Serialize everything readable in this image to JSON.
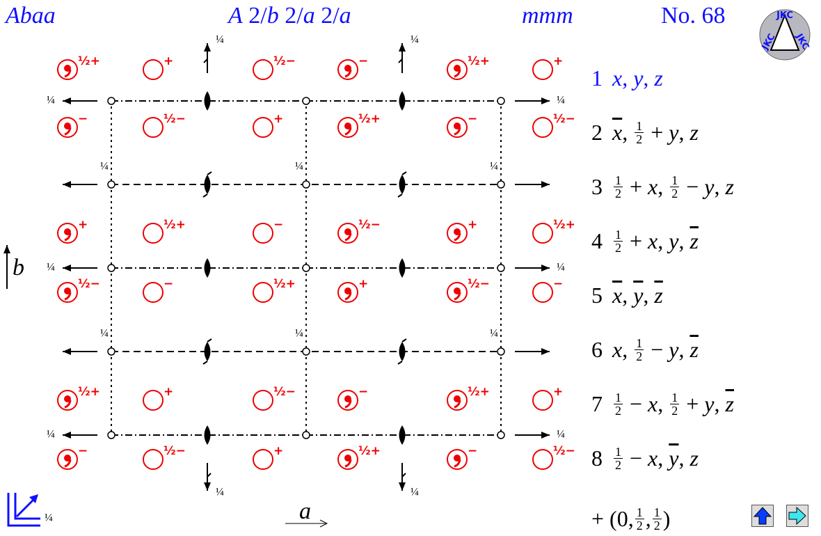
{
  "header": {
    "symbol": "Abaa",
    "full_symbol": [
      {
        "v": "A"
      },
      " 2/",
      {
        "v": "b"
      },
      " 2/",
      {
        "v": "a"
      },
      " 2/",
      {
        "v": "a"
      }
    ],
    "point_group": "mmm",
    "number": "No. 68",
    "logo": "JKC"
  },
  "axes": {
    "b": "b",
    "a": "a",
    "quarter": "¼"
  },
  "symbols": {
    "rows": [
      [
        {
          "comma": true,
          "label": "½+"
        },
        {
          "comma": false,
          "label": "+"
        },
        {
          "comma": false,
          "label": "½−"
        },
        {
          "comma": true,
          "label": "−"
        },
        {
          "comma": true,
          "label": "½+"
        },
        {
          "comma": false,
          "label": "+"
        }
      ],
      [
        {
          "comma": true,
          "label": "−"
        },
        {
          "comma": false,
          "label": "½−"
        },
        {
          "comma": false,
          "label": "+"
        },
        {
          "comma": true,
          "label": "½+"
        },
        {
          "comma": true,
          "label": "−"
        },
        {
          "comma": false,
          "label": "½−"
        }
      ],
      [
        {
          "comma": true,
          "label": "+"
        },
        {
          "comma": false,
          "label": "½+"
        },
        {
          "comma": false,
          "label": "−"
        },
        {
          "comma": true,
          "label": "½−"
        },
        {
          "comma": true,
          "label": "+"
        },
        {
          "comma": false,
          "label": "½+"
        }
      ],
      [
        {
          "comma": true,
          "label": "½−"
        },
        {
          "comma": false,
          "label": "−"
        },
        {
          "comma": false,
          "label": "½+"
        },
        {
          "comma": true,
          "label": "+"
        },
        {
          "comma": true,
          "label": "½−"
        },
        {
          "comma": false,
          "label": "−"
        }
      ],
      [
        {
          "comma": true,
          "label": "½+"
        },
        {
          "comma": false,
          "label": "+"
        },
        {
          "comma": false,
          "label": "½−"
        },
        {
          "comma": true,
          "label": "−"
        },
        {
          "comma": true,
          "label": "½+"
        },
        {
          "comma": false,
          "label": "+"
        }
      ],
      [
        {
          "comma": true,
          "label": "−"
        },
        {
          "comma": false,
          "label": "½−"
        },
        {
          "comma": false,
          "label": "+"
        },
        {
          "comma": true,
          "label": "½+"
        },
        {
          "comma": true,
          "label": "−"
        },
        {
          "comma": false,
          "label": "½−"
        }
      ]
    ]
  },
  "operations": [
    {
      "n": "1",
      "link": true,
      "terms": [
        {
          "v": "x"
        },
        ", ",
        {
          "v": "y"
        },
        ", ",
        {
          "v": "z"
        }
      ]
    },
    {
      "n": "2",
      "link": false,
      "terms": [
        {
          "v": "x",
          "bar": true
        },
        ", ",
        {
          "num": "1",
          "den": "2"
        },
        " + ",
        {
          "v": "y"
        },
        ", ",
        {
          "v": "z"
        }
      ]
    },
    {
      "n": "3",
      "link": false,
      "terms": [
        {
          "num": "1",
          "den": "2"
        },
        " + ",
        {
          "v": "x"
        },
        ", ",
        {
          "num": "1",
          "den": "2"
        },
        " − ",
        {
          "v": "y"
        },
        ", ",
        {
          "v": "z"
        }
      ]
    },
    {
      "n": "4",
      "link": false,
      "terms": [
        {
          "num": "1",
          "den": "2"
        },
        " + ",
        {
          "v": "x"
        },
        ", ",
        {
          "v": "y"
        },
        ", ",
        {
          "v": "z",
          "bar": true
        }
      ]
    },
    {
      "n": "5",
      "link": false,
      "terms": [
        {
          "v": "x",
          "bar": true
        },
        ", ",
        {
          "v": "y",
          "bar": true
        },
        ", ",
        {
          "v": "z",
          "bar": true
        }
      ]
    },
    {
      "n": "6",
      "link": false,
      "terms": [
        {
          "v": "x"
        },
        ", ",
        {
          "num": "1",
          "den": "2"
        },
        " − ",
        {
          "v": "y"
        },
        ", ",
        {
          "v": "z",
          "bar": true
        }
      ]
    },
    {
      "n": "7",
      "link": false,
      "terms": [
        {
          "num": "1",
          "den": "2"
        },
        " − ",
        {
          "v": "x"
        },
        ", ",
        {
          "num": "1",
          "den": "2"
        },
        " + ",
        {
          "v": "y"
        },
        ", ",
        {
          "v": "z",
          "bar": true
        }
      ]
    },
    {
      "n": "8",
      "link": false,
      "terms": [
        {
          "num": "1",
          "den": "2"
        },
        " − ",
        {
          "v": "x"
        },
        ", ",
        {
          "v": "y",
          "bar": true
        },
        ", ",
        {
          "v": "z"
        }
      ]
    }
  ],
  "centering": [
    "+ (0,",
    {
      "num": "1",
      "den": "2"
    },
    ",",
    {
      "num": "1",
      "den": "2"
    },
    ")"
  ]
}
